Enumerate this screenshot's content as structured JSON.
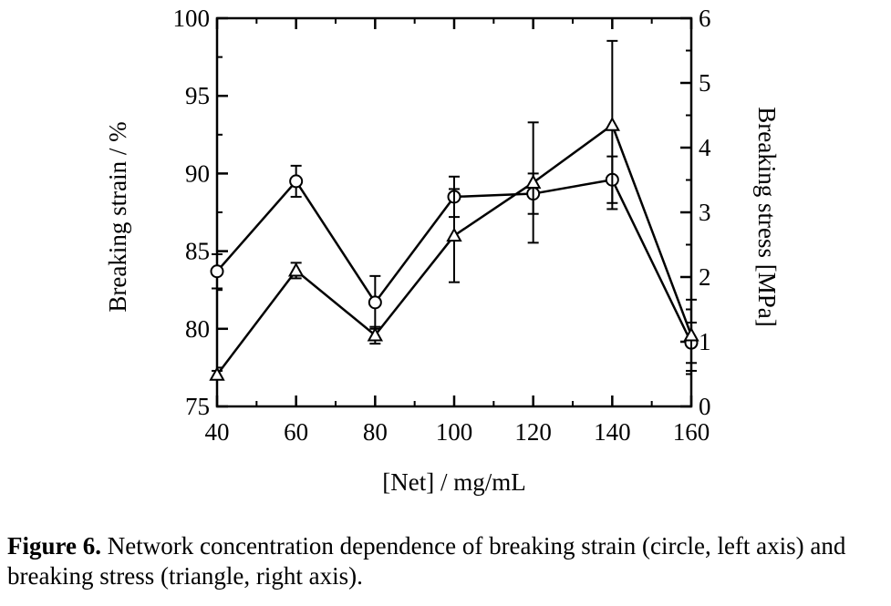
{
  "chart_data": {
    "type": "line",
    "xlabel": "[Net] / mg/mL",
    "ylabel_left": "Breaking strain / %",
    "ylabel_right": "Breaking stress [MPa]",
    "x": [
      40,
      60,
      80,
      100,
      120,
      140,
      160
    ],
    "xlim": [
      40,
      160
    ],
    "xticks": [
      40,
      60,
      80,
      100,
      120,
      140,
      160
    ],
    "ylim_left": [
      75,
      100
    ],
    "yticks_left": [
      75,
      80,
      85,
      90,
      95,
      100
    ],
    "ylim_right": [
      0,
      6
    ],
    "yticks_right": [
      0,
      1,
      2,
      3,
      4,
      5,
      6
    ],
    "series": [
      {
        "marker": "circle",
        "axis": "left",
        "values": [
          83.7,
          89.5,
          81.7,
          88.5,
          88.7,
          89.6,
          79.1
        ],
        "err": [
          1.1,
          1.0,
          1.7,
          1.3,
          1.3,
          1.5,
          1.3
        ]
      },
      {
        "marker": "triangle",
        "axis": "right",
        "values": [
          0.49,
          2.1,
          1.1,
          2.64,
          3.46,
          4.35,
          1.1
        ],
        "err": [
          0.06,
          0.12,
          0.13,
          0.72,
          0.93,
          1.3,
          0.55
        ]
      }
    ],
    "grid": false
  },
  "caption": {
    "label": "Figure 6.",
    "text": " Network concentration dependence of breaking strain (circle, left axis) and breaking stress (triangle, right axis)."
  }
}
